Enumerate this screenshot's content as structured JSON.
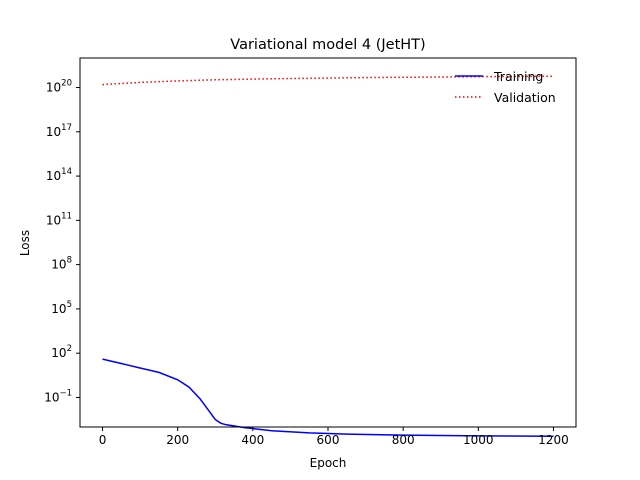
{
  "chart_data": {
    "type": "line",
    "title": "Variational model 4 (JetHT)",
    "xlabel": "Epoch",
    "ylabel": "Loss",
    "xlim": [
      -60,
      1260
    ],
    "ylim_log10": [
      -3,
      22
    ],
    "yscale": "log",
    "x_ticks": [
      0,
      200,
      400,
      600,
      800,
      1000,
      1200
    ],
    "y_ticks": [
      {
        "exp": -1,
        "base": "10",
        "sup": "−1"
      },
      {
        "exp": 2,
        "base": "10",
        "sup": "2"
      },
      {
        "exp": 5,
        "base": "10",
        "sup": "5"
      },
      {
        "exp": 8,
        "base": "10",
        "sup": "8"
      },
      {
        "exp": 11,
        "base": "10",
        "sup": "11"
      },
      {
        "exp": 14,
        "base": "10",
        "sup": "14"
      },
      {
        "exp": 17,
        "base": "10",
        "sup": "17"
      },
      {
        "exp": 20,
        "base": "10",
        "sup": "20"
      }
    ],
    "legend_position": "top-right",
    "series": [
      {
        "name": "Training",
        "color": "#0000ff",
        "style": "solid",
        "x": [
          0,
          50,
          100,
          150,
          200,
          230,
          260,
          280,
          300,
          315,
          330,
          380,
          450,
          550,
          650,
          800,
          1000,
          1200
        ],
        "log10_y": [
          1.6,
          1.3,
          1.0,
          0.7,
          0.2,
          -0.3,
          -1.1,
          -1.8,
          -2.5,
          -2.75,
          -2.85,
          -3.05,
          -3.25,
          -3.4,
          -3.48,
          -3.55,
          -3.6,
          -3.62
        ]
      },
      {
        "name": "Validation",
        "color": "#ff0000",
        "style": "dotted",
        "x": [
          0,
          100,
          200,
          300,
          400,
          500,
          600,
          700,
          800,
          900,
          1000,
          1100,
          1200
        ],
        "log10_y": [
          20.2,
          20.35,
          20.45,
          20.52,
          20.57,
          20.61,
          20.64,
          20.67,
          20.69,
          20.71,
          20.73,
          20.75,
          20.77
        ]
      }
    ]
  }
}
